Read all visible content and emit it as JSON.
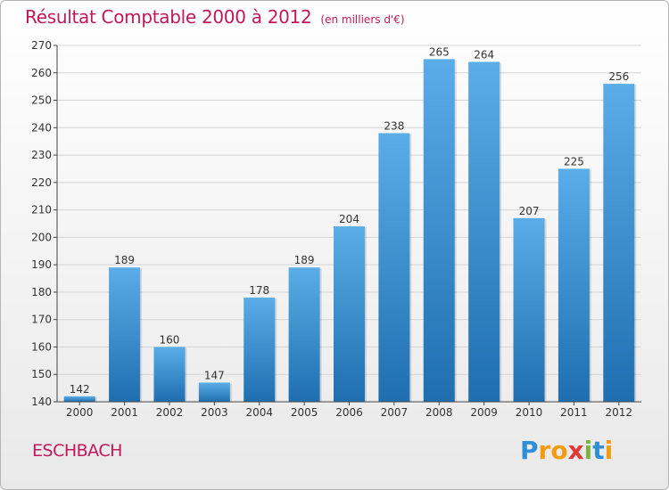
{
  "title": "Résultat Comptable 2000 à 2012",
  "subtitle": "(en milliers d'€)",
  "commune": "ESCHBACH",
  "logo": {
    "letters": [
      "P",
      "r",
      "o",
      "x",
      "i",
      "t",
      "i"
    ],
    "colors": [
      "#2e8ed8",
      "#f39c12",
      "#f39c12",
      "#e53935",
      "#7cb342",
      "#2e8ed8",
      "#f39c12"
    ]
  },
  "colors": {
    "title": "#c2185b",
    "bar_top": "#5aade8",
    "bar_bottom": "#1f6fb0",
    "grid": "#d5d5d5",
    "axis": "#444444"
  },
  "chart_data": {
    "type": "bar",
    "title": "Résultat Comptable 2000 à 2012",
    "xlabel": "",
    "ylabel": "",
    "categories": [
      "2000",
      "2001",
      "2002",
      "2003",
      "2004",
      "2005",
      "2006",
      "2007",
      "2008",
      "2009",
      "2010",
      "2011",
      "2012"
    ],
    "values": [
      142,
      189,
      160,
      147,
      178,
      189,
      204,
      238,
      265,
      264,
      207,
      225,
      256
    ],
    "ylim": [
      140,
      270
    ],
    "yticks": [
      140,
      150,
      160,
      170,
      180,
      190,
      200,
      210,
      220,
      230,
      240,
      250,
      260,
      270
    ],
    "grid": true
  }
}
